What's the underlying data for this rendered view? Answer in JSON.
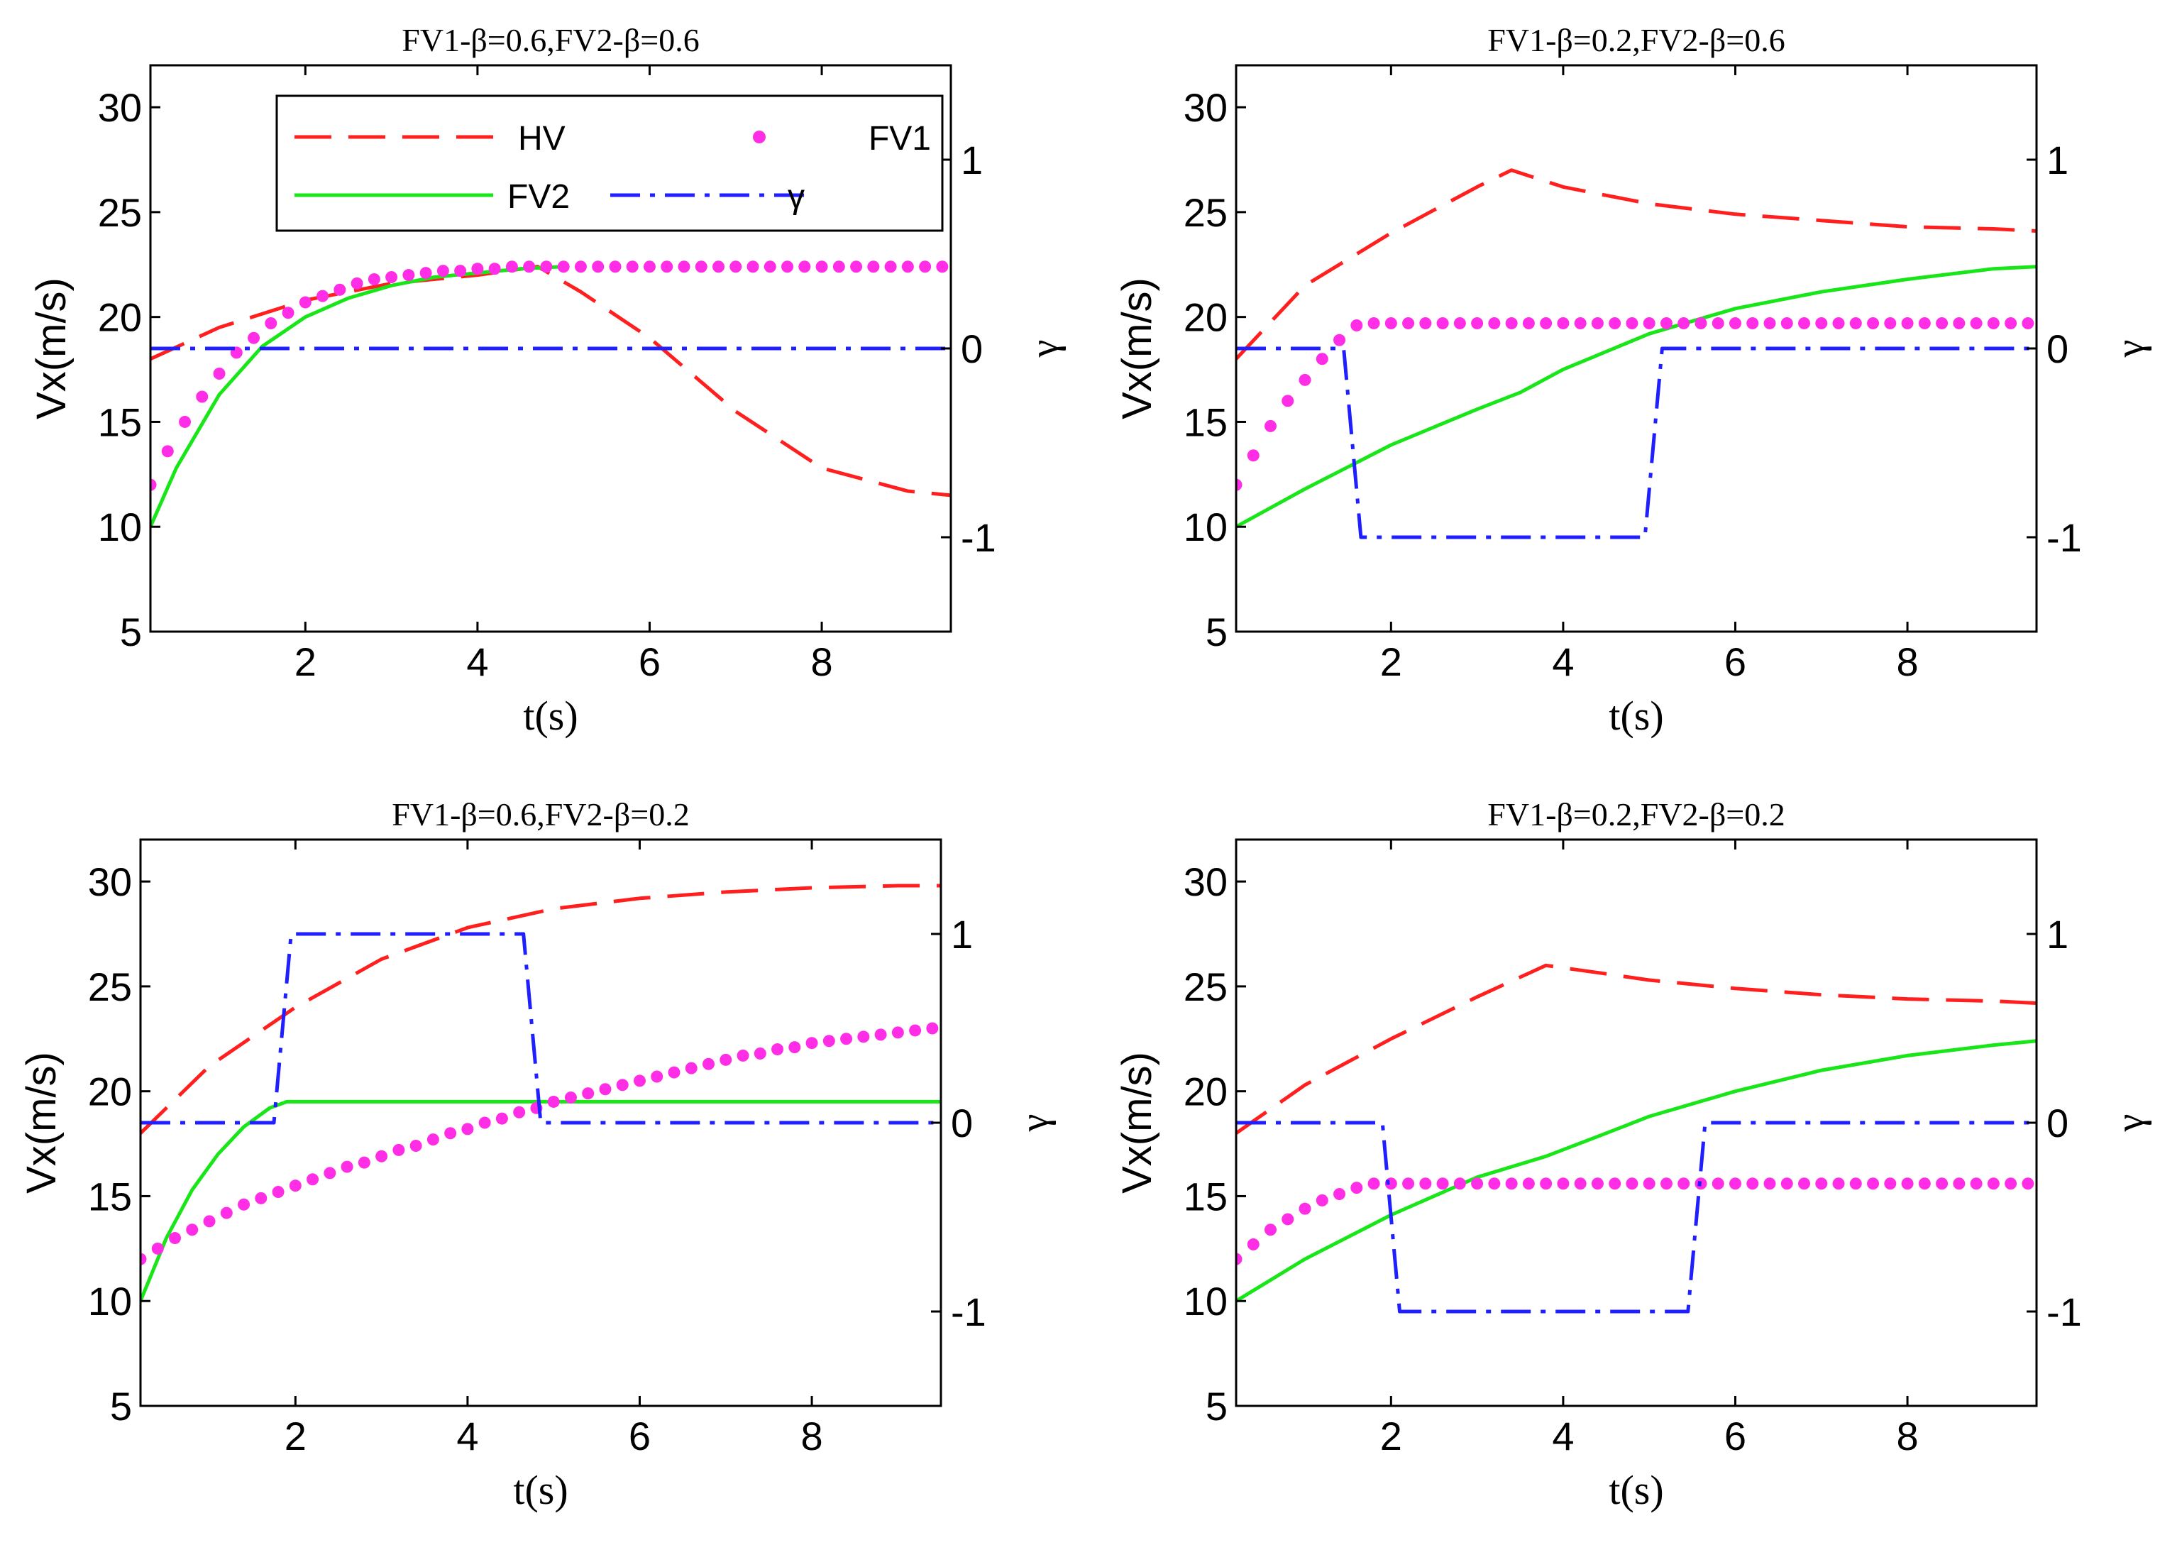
{
  "figure": {
    "series_styles": {
      "HV": {
        "color": "#ff1f1f",
        "dash": "long-dash"
      },
      "FV1": {
        "color": "#ff2ee6",
        "dash": "dots"
      },
      "FV2": {
        "color": "#19e619",
        "dash": "solid"
      },
      "gamma": {
        "color": "#1f1fff",
        "dash": "dash-dot"
      }
    },
    "legend": {
      "entries": [
        {
          "key": "HV",
          "label": "HV"
        },
        {
          "key": "FV1",
          "label": "FV1"
        },
        {
          "key": "FV2",
          "label": "FV2"
        },
        {
          "key": "gamma",
          "label": "γ"
        }
      ]
    }
  },
  "chart_data": [
    {
      "type": "line",
      "title": "FV1-β=0.6,FV2-β=0.6",
      "xlabel": "t(s)",
      "ylabel": "Vx(m/s)",
      "y2label": "γ",
      "xlim": [
        0.2,
        9.5
      ],
      "ylim": [
        5,
        32
      ],
      "y2lim": [
        -1.5,
        1.5
      ],
      "xticks": [
        2,
        4,
        6,
        8
      ],
      "yticks": [
        5,
        10,
        15,
        20,
        25,
        30
      ],
      "y2ticks": [
        -1,
        0,
        1
      ],
      "legend_position": "top-right",
      "series": [
        {
          "name": "HV",
          "axis": "left",
          "x": [
            0.2,
            1,
            2,
            3,
            4,
            4.7,
            5.2,
            6,
            7,
            8,
            9,
            9.5
          ],
          "y": [
            18,
            19.5,
            20.8,
            21.6,
            22,
            22.4,
            21.2,
            19,
            15.5,
            12.8,
            11.7,
            11.5
          ]
        },
        {
          "name": "FV2",
          "axis": "left",
          "x": [
            0.2,
            0.5,
            1,
            1.5,
            2,
            2.5,
            3,
            3.5,
            4,
            4.5,
            5
          ],
          "y": [
            10,
            12.8,
            16.3,
            18.6,
            20,
            20.9,
            21.5,
            21.9,
            22.1,
            22.3,
            22.4
          ]
        },
        {
          "name": "FV1",
          "axis": "left",
          "x": [
            0.2,
            0.4,
            0.6,
            0.8,
            1,
            1.2,
            1.4,
            1.6,
            1.8,
            2,
            2.2,
            2.4,
            2.6,
            2.8,
            3,
            3.2,
            3.4,
            3.6,
            3.8,
            4,
            4.2,
            4.4,
            4.6,
            4.8,
            5,
            5.2,
            5.4,
            5.6,
            5.8,
            6,
            6.2,
            6.4,
            6.6,
            6.8,
            7,
            7.2,
            7.4,
            7.6,
            7.8,
            8,
            8.2,
            8.4,
            8.6,
            8.8,
            9,
            9.2,
            9.4
          ],
          "y": [
            12,
            13.6,
            15,
            16.2,
            17.3,
            18.3,
            19,
            19.7,
            20.2,
            20.7,
            21,
            21.3,
            21.6,
            21.8,
            21.9,
            22,
            22.1,
            22.2,
            22.2,
            22.3,
            22.3,
            22.4,
            22.4,
            22.4,
            22.4,
            22.4,
            22.4,
            22.4,
            22.4,
            22.4,
            22.4,
            22.4,
            22.4,
            22.4,
            22.4,
            22.4,
            22.4,
            22.4,
            22.4,
            22.4,
            22.4,
            22.4,
            22.4,
            22.4,
            22.4,
            22.4,
            22.4
          ]
        },
        {
          "name": "gamma",
          "axis": "right",
          "x": [
            0.2,
            9.5
          ],
          "y": [
            0,
            0
          ]
        }
      ]
    },
    {
      "type": "line",
      "title": "FV1-β=0.2,FV2-β=0.6",
      "xlabel": "t(s)",
      "ylabel": "Vx(m/s)",
      "y2label": "γ",
      "xlim": [
        0.2,
        9.5
      ],
      "ylim": [
        5,
        32
      ],
      "y2lim": [
        -1.5,
        1.5
      ],
      "xticks": [
        2,
        4,
        6,
        8
      ],
      "yticks": [
        5,
        10,
        15,
        20,
        25,
        30
      ],
      "y2ticks": [
        -1,
        0,
        1
      ],
      "series": [
        {
          "name": "HV",
          "axis": "left",
          "x": [
            0.2,
            1,
            2,
            3,
            3.4,
            4,
            5,
            6,
            7,
            8,
            9,
            9.5
          ],
          "y": [
            18,
            21.5,
            24,
            26.2,
            27,
            26.2,
            25.4,
            24.9,
            24.6,
            24.3,
            24.2,
            24.1
          ]
        },
        {
          "name": "FV2",
          "axis": "left",
          "x": [
            0.2,
            1,
            2,
            3,
            3.5,
            4,
            5,
            6,
            7,
            8,
            9,
            9.5
          ],
          "y": [
            10,
            11.8,
            13.9,
            15.6,
            16.4,
            17.5,
            19.2,
            20.4,
            21.2,
            21.8,
            22.3,
            22.4
          ]
        },
        {
          "name": "FV1",
          "axis": "left",
          "x": [
            0.2,
            0.4,
            0.6,
            0.8,
            1,
            1.2,
            1.4,
            1.6,
            1.8,
            2,
            2.2,
            2.4,
            2.6,
            2.8,
            3,
            3.2,
            3.4,
            3.6,
            3.8,
            4,
            4.2,
            4.4,
            4.6,
            4.8,
            5,
            5.2,
            5.4,
            5.6,
            5.8,
            6,
            6.2,
            6.4,
            6.6,
            6.8,
            7,
            7.2,
            7.4,
            7.6,
            7.8,
            8,
            8.2,
            8.4,
            8.6,
            8.8,
            9,
            9.2,
            9.4
          ],
          "y": [
            12,
            13.4,
            14.8,
            16,
            17,
            18,
            18.9,
            19.6,
            19.7,
            19.7,
            19.7,
            19.7,
            19.7,
            19.7,
            19.7,
            19.7,
            19.7,
            19.7,
            19.7,
            19.7,
            19.7,
            19.7,
            19.7,
            19.7,
            19.7,
            19.7,
            19.7,
            19.7,
            19.7,
            19.7,
            19.7,
            19.7,
            19.7,
            19.7,
            19.7,
            19.7,
            19.7,
            19.7,
            19.7,
            19.7,
            19.7,
            19.7,
            19.7,
            19.7,
            19.7,
            19.7,
            19.7
          ]
        },
        {
          "name": "gamma",
          "axis": "right",
          "x": [
            0.2,
            1.45,
            1.65,
            4.95,
            5.15,
            9.5
          ],
          "y": [
            0,
            0,
            -1,
            -1,
            0,
            0
          ]
        }
      ]
    },
    {
      "type": "line",
      "title": "FV1-β=0.6,FV2-β=0.2",
      "xlabel": "t(s)",
      "ylabel": "Vx(m/s)",
      "y2label": "γ",
      "xlim": [
        0.2,
        9.5
      ],
      "ylim": [
        5,
        32
      ],
      "y2lim": [
        -1.5,
        1.5
      ],
      "xticks": [
        2,
        4,
        6,
        8
      ],
      "yticks": [
        5,
        10,
        15,
        20,
        25,
        30
      ],
      "y2ticks": [
        -1,
        0,
        1
      ],
      "series": [
        {
          "name": "HV",
          "axis": "left",
          "x": [
            0.2,
            1,
            2,
            3,
            4,
            5,
            6,
            7,
            8,
            9,
            9.5
          ],
          "y": [
            18,
            21.2,
            24,
            26.3,
            27.8,
            28.7,
            29.2,
            29.5,
            29.7,
            29.8,
            29.8
          ]
        },
        {
          "name": "FV2",
          "axis": "left",
          "x": [
            0.2,
            0.5,
            0.8,
            1.1,
            1.4,
            1.7,
            1.9,
            9.5
          ],
          "y": [
            10,
            13,
            15.3,
            17,
            18.3,
            19.2,
            19.5,
            19.5
          ]
        },
        {
          "name": "FV1",
          "axis": "left",
          "x": [
            0.2,
            0.4,
            0.6,
            0.8,
            1,
            1.2,
            1.4,
            1.6,
            1.8,
            2,
            2.2,
            2.4,
            2.6,
            2.8,
            3,
            3.2,
            3.4,
            3.6,
            3.8,
            4,
            4.2,
            4.4,
            4.6,
            4.8,
            5,
            5.2,
            5.4,
            5.6,
            5.8,
            6,
            6.2,
            6.4,
            6.6,
            6.8,
            7,
            7.2,
            7.4,
            7.6,
            7.8,
            8,
            8.2,
            8.4,
            8.6,
            8.8,
            9,
            9.2,
            9.4
          ],
          "y": [
            12,
            12.5,
            13,
            13.4,
            13.8,
            14.2,
            14.6,
            14.9,
            15.2,
            15.5,
            15.8,
            16.1,
            16.4,
            16.6,
            16.9,
            17.2,
            17.4,
            17.7,
            18,
            18.2,
            18.5,
            18.7,
            19,
            19.2,
            19.5,
            19.7,
            19.9,
            20.1,
            20.3,
            20.5,
            20.7,
            20.9,
            21.1,
            21.3,
            21.5,
            21.7,
            21.8,
            22,
            22.1,
            22.3,
            22.4,
            22.5,
            22.6,
            22.7,
            22.8,
            22.9,
            23
          ]
        },
        {
          "name": "gamma",
          "axis": "right",
          "x": [
            0.2,
            1.75,
            1.95,
            4.65,
            4.85,
            9.5
          ],
          "y": [
            0,
            0,
            1,
            1,
            0,
            0
          ]
        }
      ]
    },
    {
      "type": "line",
      "title": "FV1-β=0.2,FV2-β=0.2",
      "xlabel": "t(s)",
      "ylabel": "Vx(m/s)",
      "y2label": "γ",
      "xlim": [
        0.2,
        9.5
      ],
      "ylim": [
        5,
        32
      ],
      "y2lim": [
        -1.5,
        1.5
      ],
      "xticks": [
        2,
        4,
        6,
        8
      ],
      "yticks": [
        5,
        10,
        15,
        20,
        25,
        30
      ],
      "y2ticks": [
        -1,
        0,
        1
      ],
      "series": [
        {
          "name": "HV",
          "axis": "left",
          "x": [
            0.2,
            1,
            2,
            3,
            3.8,
            4.5,
            5,
            6,
            7,
            8,
            9,
            9.5
          ],
          "y": [
            18,
            20.3,
            22.5,
            24.5,
            26,
            25.6,
            25.3,
            24.9,
            24.6,
            24.4,
            24.3,
            24.2
          ]
        },
        {
          "name": "FV2",
          "axis": "left",
          "x": [
            0.2,
            1,
            2,
            3,
            3.8,
            4.5,
            5,
            6,
            7,
            8,
            9,
            9.5
          ],
          "y": [
            10,
            12,
            14.1,
            15.9,
            16.9,
            18,
            18.8,
            20,
            21,
            21.7,
            22.2,
            22.4
          ]
        },
        {
          "name": "FV1",
          "axis": "left",
          "x": [
            0.2,
            0.4,
            0.6,
            0.8,
            1,
            1.2,
            1.4,
            1.6,
            1.8,
            2,
            2.2,
            2.4,
            2.6,
            2.8,
            3,
            3.2,
            3.4,
            3.6,
            3.8,
            4,
            4.2,
            4.4,
            4.6,
            4.8,
            5,
            5.2,
            5.4,
            5.6,
            5.8,
            6,
            6.2,
            6.4,
            6.6,
            6.8,
            7,
            7.2,
            7.4,
            7.6,
            7.8,
            8,
            8.2,
            8.4,
            8.6,
            8.8,
            9,
            9.2,
            9.4
          ],
          "y": [
            12,
            12.7,
            13.4,
            13.9,
            14.4,
            14.8,
            15.1,
            15.4,
            15.6,
            15.6,
            15.6,
            15.6,
            15.6,
            15.6,
            15.6,
            15.6,
            15.6,
            15.6,
            15.6,
            15.6,
            15.6,
            15.6,
            15.6,
            15.6,
            15.6,
            15.6,
            15.6,
            15.6,
            15.6,
            15.6,
            15.6,
            15.6,
            15.6,
            15.6,
            15.6,
            15.6,
            15.6,
            15.6,
            15.6,
            15.6,
            15.6,
            15.6,
            15.6,
            15.6,
            15.6,
            15.6,
            15.6
          ]
        },
        {
          "name": "gamma",
          "axis": "right",
          "x": [
            0.2,
            1.9,
            2.1,
            5.45,
            5.65,
            9.5
          ],
          "y": [
            0,
            0,
            -1,
            -1,
            0,
            0
          ]
        }
      ]
    }
  ]
}
